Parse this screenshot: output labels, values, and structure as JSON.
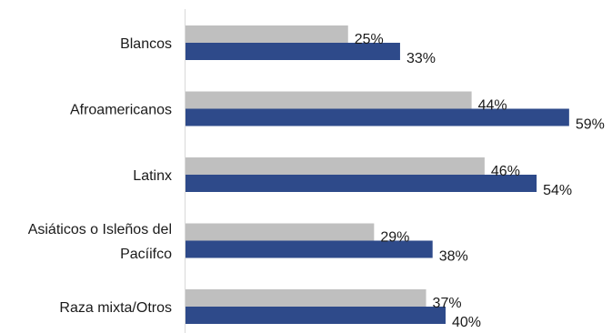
{
  "chart_data": {
    "type": "bar",
    "orientation": "horizontal",
    "categories": [
      [
        "Blancos"
      ],
      [
        "Afroamericanos"
      ],
      [
        "Latinx"
      ],
      [
        "Asiáticos o Isleños del",
        "Pacíifco"
      ],
      [
        "Raza mixta/Otros"
      ]
    ],
    "series": [
      {
        "values": [
          25,
          44,
          46,
          29,
          37
        ],
        "color": "#bfbfbf"
      },
      {
        "values": [
          33,
          59,
          54,
          38,
          40
        ],
        "color": "#2e4a8a"
      }
    ],
    "value_suffix": "%",
    "xlim": [
      0,
      70
    ],
    "grid": false,
    "legend": "none"
  }
}
